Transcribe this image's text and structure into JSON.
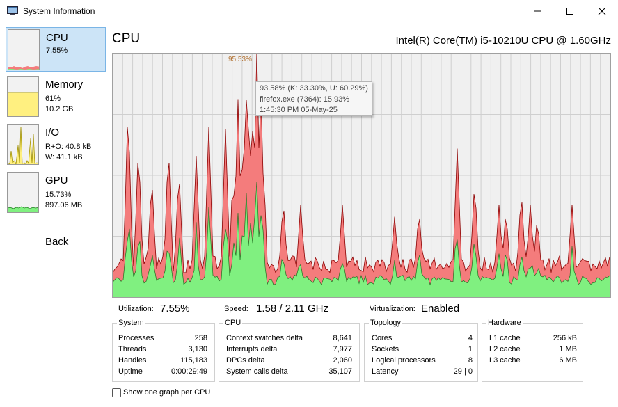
{
  "window": {
    "title": "System Information"
  },
  "sidebar": {
    "items": [
      {
        "title": "CPU",
        "lines": [
          "7.55%"
        ]
      },
      {
        "title": "Memory",
        "lines": [
          "61%",
          "10.2 GB"
        ]
      },
      {
        "title": "I/O",
        "lines": [
          "R+O: 40.8 kB",
          "W: 41.1 kB"
        ]
      },
      {
        "title": "GPU",
        "lines": [
          "15.73%",
          "897.06 MB"
        ]
      }
    ],
    "back_label": "Back"
  },
  "main": {
    "heading": "CPU",
    "model": "Intel(R) Core(TM) i5-10210U CPU @ 1.60GHz",
    "peak_label": "95.53%",
    "tooltip": {
      "line1": "93.58% (K: 33.30%, U: 60.29%)",
      "line2": "firefox.exe (7364): 15.93%",
      "line3": "1:45:30 PM 05-May-25"
    },
    "metrics": {
      "utilization_label": "Utilization:",
      "utilization_value": "7.55%",
      "speed_label": "Speed:",
      "speed_value": "1.58 / 2.11 GHz",
      "virtualization_label": "Virtualization:",
      "virtualization_value": "Enabled"
    },
    "groups": {
      "system": {
        "title": "System",
        "rows": [
          {
            "label": "Processes",
            "value": "258"
          },
          {
            "label": "Threads",
            "value": "3,130"
          },
          {
            "label": "Handles",
            "value": "115,183"
          },
          {
            "label": "Uptime",
            "value": "0:00:29:49"
          }
        ]
      },
      "cpu": {
        "title": "CPU",
        "rows": [
          {
            "label": "Context switches delta",
            "value": "8,641"
          },
          {
            "label": "Interrupts delta",
            "value": "7,977"
          },
          {
            "label": "DPCs delta",
            "value": "2,060"
          },
          {
            "label": "System calls delta",
            "value": "35,107"
          }
        ]
      },
      "topology": {
        "title": "Topology",
        "rows": [
          {
            "label": "Cores",
            "value": "4"
          },
          {
            "label": "Sockets",
            "value": "1"
          },
          {
            "label": "Logical processors",
            "value": "8"
          },
          {
            "label": "Latency",
            "value": "29 | 0"
          }
        ]
      },
      "hardware": {
        "title": "Hardware",
        "rows": [
          {
            "label": "L1 cache",
            "value": "256 kB"
          },
          {
            "label": "L2 cache",
            "value": "1 MB"
          },
          {
            "label": "L3 cache",
            "value": "6 MB"
          }
        ]
      }
    },
    "checkbox_label": "Show one graph per CPU"
  },
  "colors": {
    "total": "#f47c7c",
    "total_line": "#8b0000",
    "kernel": "#80f080",
    "kernel_line": "#207020",
    "selected_bg": "#cce4f7",
    "memory_fill": "#fff080"
  }
}
